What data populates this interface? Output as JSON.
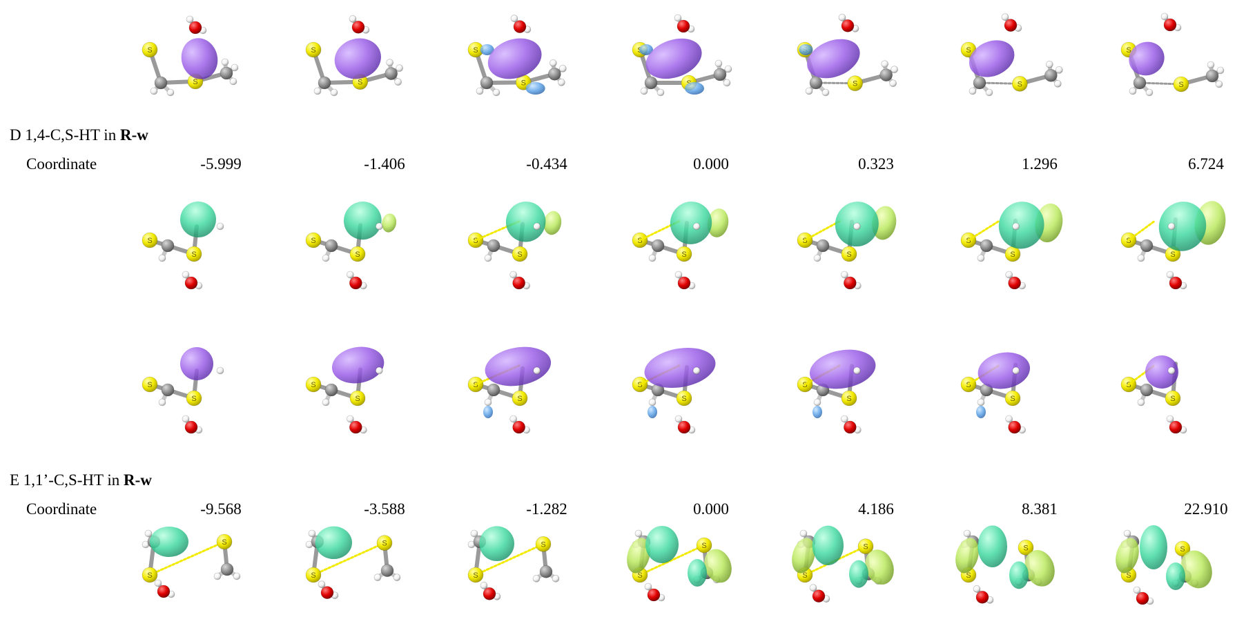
{
  "colors": {
    "sulfur": "#f2ea00",
    "carbon": "#8f8f8f",
    "hydrogen": "#f2f2f2",
    "oxygen": "#e00000",
    "orbital_purple": "#9a5ce8",
    "orbital_blue": "#5aa2e8",
    "orbital_teal": "#3ed9a0",
    "orbital_lime": "#b8e85a"
  },
  "panel_d": {
    "prefix": "D 1,4-C,S-HT in ",
    "bold": "R-w",
    "coordinate_label": "Coordinate",
    "coordinates": [
      "-5.999",
      "-1.406",
      "-0.434",
      "0.000",
      "0.323",
      "1.296",
      "6.724"
    ]
  },
  "panel_e": {
    "prefix": "E 1,1’-C,S-HT in ",
    "bold": "R-w",
    "coordinate_label": "Coordinate",
    "coordinates": [
      "-9.568",
      "-3.588",
      "-1.282",
      "0.000",
      "4.186",
      "8.381",
      "22.910"
    ]
  },
  "atom_label": "S"
}
